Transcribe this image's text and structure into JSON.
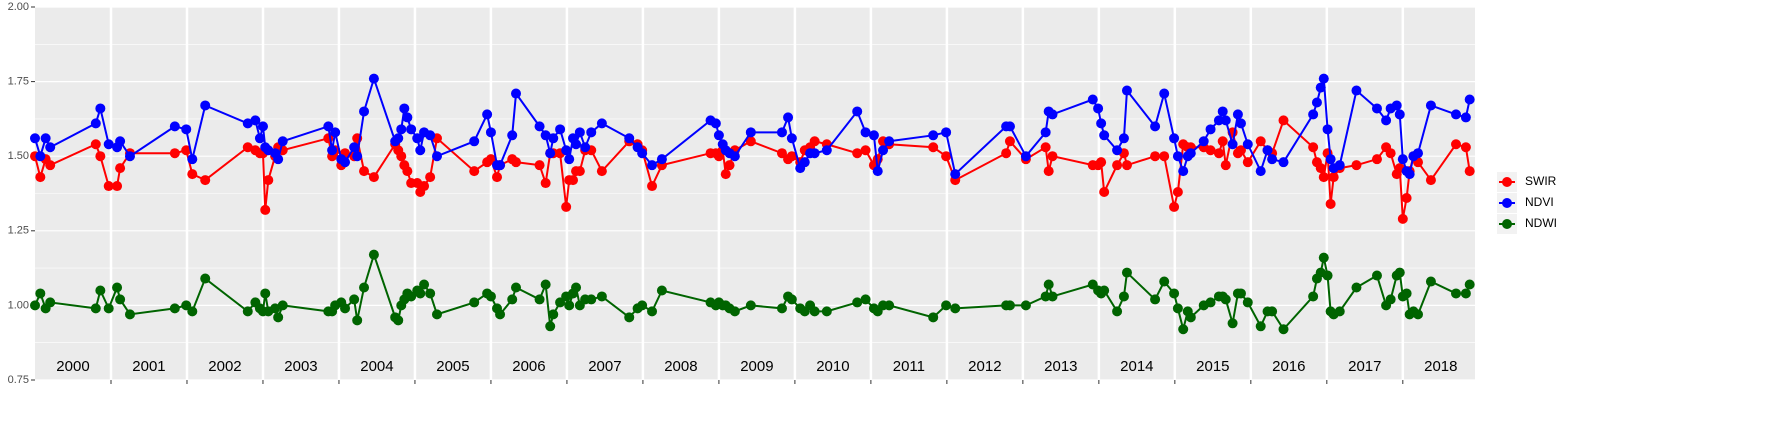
{
  "chart_data": {
    "type": "line",
    "x": [
      2000.0,
      2000.07,
      2000.14,
      2000.2,
      2000.8,
      2000.86,
      2000.97,
      2001.08,
      2001.12,
      2001.25,
      2001.84,
      2001.99,
      2002.07,
      2002.24,
      2002.8,
      2002.9,
      2002.96,
      2003.0,
      2003.03,
      2003.07,
      2003.16,
      2003.2,
      2003.26,
      2003.86,
      2003.91,
      2003.95,
      2004.03,
      2004.08,
      2004.2,
      2004.24,
      2004.33,
      2004.46,
      2004.74,
      2004.78,
      2004.82,
      2004.86,
      2004.9,
      2004.95,
      2005.03,
      2005.07,
      2005.12,
      2005.2,
      2005.29,
      2005.78,
      2005.95,
      2006.0,
      2006.08,
      2006.12,
      2006.28,
      2006.33,
      2006.64,
      2006.72,
      2006.78,
      2006.82,
      2006.91,
      2006.99,
      2007.03,
      2007.08,
      2007.12,
      2007.17,
      2007.24,
      2007.32,
      2007.46,
      2007.82,
      2007.93,
      2007.99,
      2008.12,
      2008.25,
      2008.89,
      2008.96,
      2009.0,
      2009.05,
      2009.09,
      2009.14,
      2009.21,
      2009.42,
      2009.83,
      2009.91,
      2009.96,
      2010.07,
      2010.13,
      2010.2,
      2010.26,
      2010.42,
      2010.82,
      2010.93,
      2011.04,
      2011.09,
      2011.16,
      2011.24,
      2011.82,
      2011.99,
      2012.11,
      2012.78,
      2012.83,
      2013.04,
      2013.3,
      2013.34,
      2013.39,
      2013.92,
      2013.99,
      2014.03,
      2014.07,
      2014.24,
      2014.33,
      2014.37,
      2014.74,
      2014.86,
      2014.99,
      2015.04,
      2015.11,
      2015.17,
      2015.21,
      2015.38,
      2015.47,
      2015.58,
      2015.63,
      2015.67,
      2015.76,
      2015.83,
      2015.87,
      2015.96,
      2016.13,
      2016.22,
      2016.28,
      2016.43,
      2016.82,
      2016.87,
      2016.92,
      2016.96,
      2017.01,
      2017.05,
      2017.09,
      2017.17,
      2017.39,
      2017.66,
      2017.78,
      2017.84,
      2017.92,
      2017.96,
      2018.0,
      2018.05,
      2018.09,
      2018.14,
      2018.2,
      2018.37,
      2018.7,
      2018.83,
      2018.88
    ],
    "series": [
      {
        "name": "SWIR",
        "color": "#ff0000",
        "values": [
          1.5,
          1.43,
          1.49,
          1.47,
          1.54,
          1.5,
          1.4,
          1.4,
          1.46,
          1.51,
          1.51,
          1.52,
          1.44,
          1.42,
          1.53,
          1.52,
          1.51,
          1.51,
          1.32,
          1.42,
          1.5,
          1.53,
          1.52,
          1.56,
          1.5,
          1.52,
          1.47,
          1.51,
          1.5,
          1.56,
          1.45,
          1.43,
          1.54,
          1.52,
          1.5,
          1.47,
          1.45,
          1.41,
          1.41,
          1.38,
          1.4,
          1.43,
          1.56,
          1.45,
          1.48,
          1.49,
          1.43,
          1.47,
          1.49,
          1.48,
          1.47,
          1.41,
          1.51,
          1.51,
          1.51,
          1.33,
          1.42,
          1.42,
          1.45,
          1.45,
          1.52,
          1.52,
          1.45,
          1.55,
          1.54,
          1.52,
          1.4,
          1.47,
          1.51,
          1.51,
          1.5,
          1.52,
          1.44,
          1.47,
          1.52,
          1.55,
          1.51,
          1.49,
          1.5,
          1.48,
          1.52,
          1.53,
          1.55,
          1.54,
          1.51,
          1.52,
          1.47,
          1.49,
          1.55,
          1.54,
          1.53,
          1.5,
          1.42,
          1.51,
          1.55,
          1.49,
          1.53,
          1.45,
          1.5,
          1.47,
          1.47,
          1.48,
          1.38,
          1.47,
          1.51,
          1.47,
          1.5,
          1.5,
          1.33,
          1.38,
          1.54,
          1.53,
          1.53,
          1.53,
          1.52,
          1.51,
          1.55,
          1.47,
          1.58,
          1.51,
          1.52,
          1.48,
          1.55,
          1.52,
          1.51,
          1.62,
          1.53,
          1.48,
          1.46,
          1.43,
          1.51,
          1.34,
          1.43,
          1.46,
          1.47,
          1.49,
          1.53,
          1.51,
          1.44,
          1.46,
          1.29,
          1.36,
          1.45,
          1.5,
          1.48,
          1.42,
          1.54,
          1.53,
          1.45
        ]
      },
      {
        "name": "NDVI",
        "color": "#0000ff",
        "values": [
          1.56,
          1.5,
          1.56,
          1.53,
          1.61,
          1.66,
          1.54,
          1.53,
          1.55,
          1.5,
          1.6,
          1.59,
          1.49,
          1.67,
          1.61,
          1.62,
          1.56,
          1.6,
          1.53,
          1.52,
          1.51,
          1.49,
          1.55,
          1.6,
          1.52,
          1.58,
          1.49,
          1.48,
          1.53,
          1.5,
          1.65,
          1.76,
          1.55,
          1.56,
          1.59,
          1.66,
          1.63,
          1.59,
          1.56,
          1.52,
          1.58,
          1.57,
          1.5,
          1.55,
          1.64,
          1.58,
          1.47,
          1.47,
          1.57,
          1.71,
          1.6,
          1.57,
          1.51,
          1.56,
          1.59,
          1.52,
          1.49,
          1.56,
          1.54,
          1.58,
          1.53,
          1.58,
          1.61,
          1.56,
          1.53,
          1.51,
          1.47,
          1.49,
          1.62,
          1.61,
          1.57,
          1.54,
          1.52,
          1.51,
          1.5,
          1.58,
          1.58,
          1.63,
          1.56,
          1.46,
          1.48,
          1.51,
          1.51,
          1.52,
          1.65,
          1.58,
          1.57,
          1.45,
          1.52,
          1.55,
          1.57,
          1.58,
          1.44,
          1.6,
          1.6,
          1.5,
          1.58,
          1.65,
          1.64,
          1.69,
          1.66,
          1.61,
          1.57,
          1.52,
          1.56,
          1.72,
          1.6,
          1.71,
          1.56,
          1.5,
          1.45,
          1.5,
          1.51,
          1.55,
          1.59,
          1.62,
          1.65,
          1.62,
          1.54,
          1.64,
          1.61,
          1.54,
          1.45,
          1.52,
          1.49,
          1.48,
          1.64,
          1.68,
          1.73,
          1.76,
          1.59,
          1.49,
          1.46,
          1.47,
          1.72,
          1.66,
          1.62,
          1.66,
          1.67,
          1.64,
          1.49,
          1.45,
          1.44,
          1.5,
          1.51,
          1.67,
          1.64,
          1.63,
          1.69
        ]
      },
      {
        "name": "NDWI",
        "color": "#006400",
        "values": [
          1.0,
          1.04,
          0.99,
          1.01,
          0.99,
          1.05,
          0.99,
          1.06,
          1.02,
          0.97,
          0.99,
          1.0,
          0.98,
          1.09,
          0.98,
          1.01,
          0.99,
          0.98,
          1.04,
          0.98,
          0.99,
          0.96,
          1.0,
          0.98,
          0.98,
          1.0,
          1.01,
          0.99,
          1.02,
          0.95,
          1.06,
          1.17,
          0.96,
          0.95,
          1.0,
          1.02,
          1.04,
          1.03,
          1.05,
          1.04,
          1.07,
          1.04,
          0.97,
          1.01,
          1.04,
          1.03,
          0.99,
          0.97,
          1.02,
          1.06,
          1.02,
          1.07,
          0.93,
          0.97,
          1.01,
          1.03,
          1.0,
          1.04,
          1.06,
          1.0,
          1.02,
          1.02,
          1.03,
          0.96,
          0.99,
          1.0,
          0.98,
          1.05,
          1.01,
          1.0,
          1.01,
          1.0,
          1.0,
          0.99,
          0.98,
          1.0,
          0.99,
          1.03,
          1.02,
          0.99,
          0.98,
          1.0,
          0.98,
          0.98,
          1.01,
          1.02,
          0.99,
          0.98,
          1.0,
          1.0,
          0.96,
          1.0,
          0.99,
          1.0,
          1.0,
          1.0,
          1.03,
          1.07,
          1.03,
          1.07,
          1.05,
          1.04,
          1.05,
          0.98,
          1.03,
          1.11,
          1.02,
          1.08,
          1.04,
          0.99,
          0.92,
          0.98,
          0.96,
          1.0,
          1.01,
          1.03,
          1.03,
          1.02,
          0.94,
          1.04,
          1.04,
          1.01,
          0.93,
          0.98,
          0.98,
          0.92,
          1.03,
          1.09,
          1.11,
          1.16,
          1.1,
          0.98,
          0.97,
          0.98,
          1.06,
          1.1,
          1.0,
          1.02,
          1.1,
          1.11,
          1.03,
          1.04,
          0.97,
          0.98,
          0.97,
          1.08,
          1.04,
          1.04,
          1.07
        ]
      }
    ],
    "xlim": [
      2000.0,
      2018.95
    ],
    "ylim": [
      0.75,
      2.0
    ],
    "yticks": [
      0.75,
      {
        "value": 1.0,
        "label": "1.00"
      },
      1.25,
      {
        "value": 1.5,
        "label": "1.50"
      },
      1.75,
      {
        "value": 2.0,
        "label": "2.00"
      }
    ],
    "year_lines": [
      2001,
      2002,
      2003,
      2004,
      2005,
      2006,
      2007,
      2008,
      2009,
      2010,
      2011,
      2012,
      2013,
      2014,
      2015,
      2016,
      2017,
      2018
    ],
    "year_labels": [
      2000,
      2001,
      2002,
      2003,
      2004,
      2005,
      2006,
      2007,
      2008,
      2009,
      2010,
      2011,
      2012,
      2013,
      2014,
      2015,
      2016,
      2017,
      2018
    ],
    "grid": true,
    "legend": "right"
  }
}
